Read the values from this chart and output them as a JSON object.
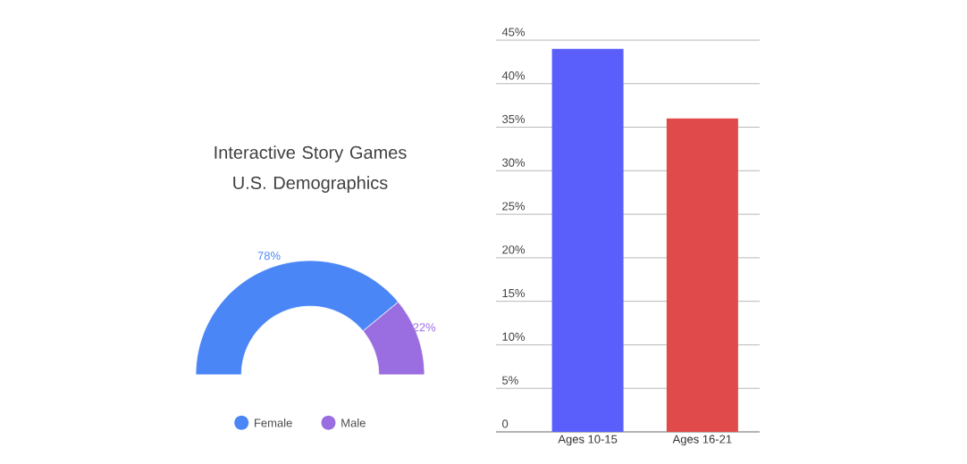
{
  "chart_data": [
    {
      "type": "donut",
      "title": "Interactive Story Games U.S. Demographics",
      "categories": [
        "Female",
        "Male"
      ],
      "values": [
        78,
        22
      ],
      "colors": [
        "#4a86f5",
        "#9a6ee0"
      ],
      "value_labels": [
        "78%",
        "22%"
      ],
      "legend": "bottom"
    },
    {
      "type": "bar",
      "categories": [
        "Ages 10-15",
        "Ages 16-21"
      ],
      "values": [
        44,
        36
      ],
      "colors": [
        "#5a5ffc",
        "#e04a4a"
      ],
      "ylim": [
        0,
        45
      ],
      "yticks": [
        {
          "value": 0,
          "label": "0"
        },
        {
          "value": 5,
          "label": "5%"
        },
        {
          "value": 10,
          "label": "10%"
        },
        {
          "value": 15,
          "label": "15%"
        },
        {
          "value": 20,
          "label": "20%"
        },
        {
          "value": 25,
          "label": "25%"
        },
        {
          "value": 30,
          "label": "30%"
        },
        {
          "value": 35,
          "label": "35%"
        },
        {
          "value": 40,
          "label": "40%"
        },
        {
          "value": 45,
          "label": "45%"
        }
      ],
      "grid": "y"
    }
  ]
}
